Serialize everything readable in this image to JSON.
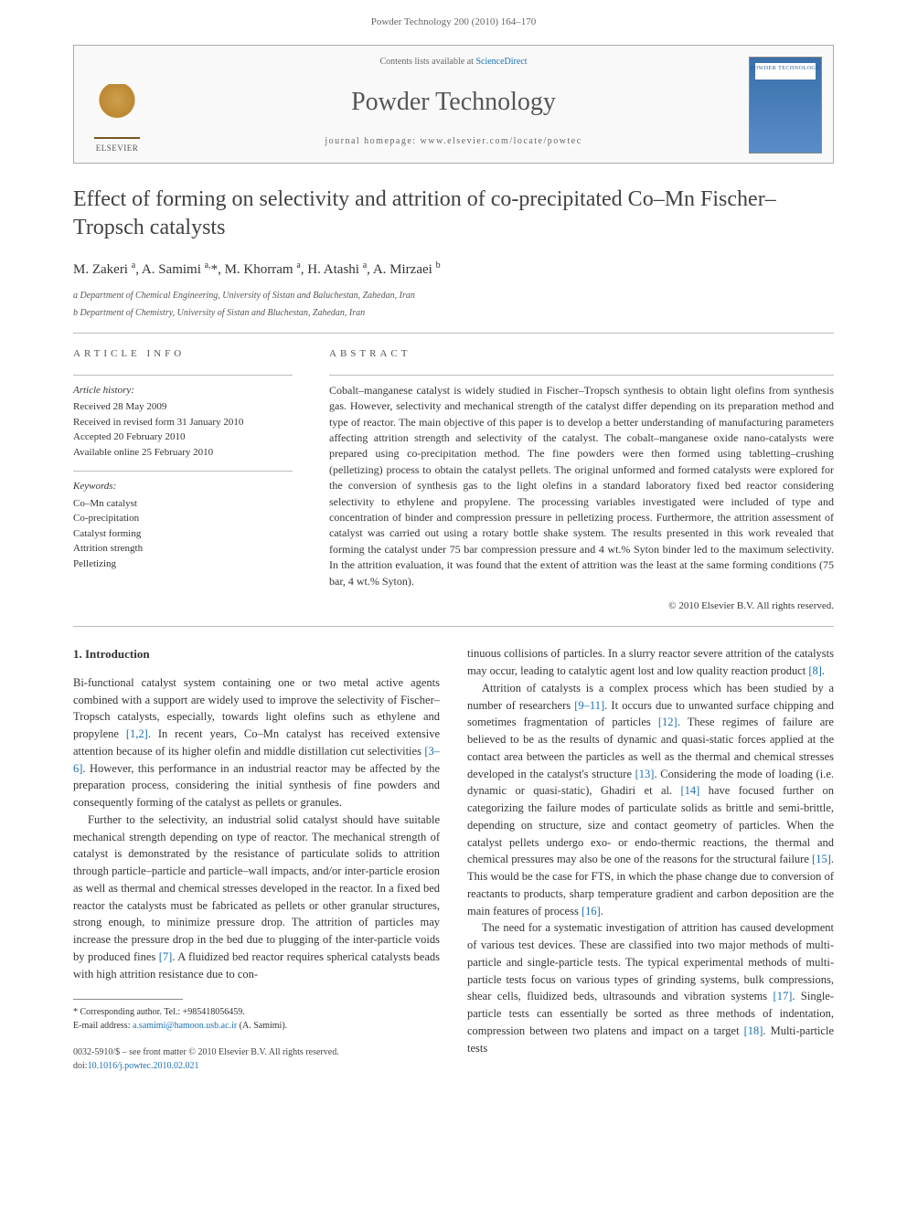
{
  "page_header": "Powder Technology 200 (2010) 164–170",
  "banner": {
    "contents_prefix": "Contents lists available at ",
    "contents_link": "ScienceDirect",
    "journal": "Powder Technology",
    "homepage_prefix": "journal homepage: ",
    "homepage_url": "www.elsevier.com/locate/powtec",
    "publisher_label": "ELSEVIER",
    "cover_label": "POWDER TECHNOLOGY"
  },
  "title": "Effect of forming on selectivity and attrition of co-precipitated Co–Mn Fischer–Tropsch catalysts",
  "authors_html": "M. Zakeri <sup>a</sup>, A. Samimi <sup>a,</sup><span class='star'>*</span>, M. Khorram <sup>a</sup>, H. Atashi <sup>a</sup>, A. Mirzaei <sup>b</sup>",
  "affiliations": [
    "a Department of Chemical Engineering, University of Sistan and Baluchestan, Zahedan, Iran",
    "b Department of Chemistry, University of Sistan and Bluchestan, Zahedan, Iran"
  ],
  "article_info_label": "ARTICLE INFO",
  "abstract_label": "ABSTRACT",
  "history_label": "Article history:",
  "history": [
    "Received 28 May 2009",
    "Received in revised form 31 January 2010",
    "Accepted 20 February 2010",
    "Available online 25 February 2010"
  ],
  "keywords_label": "Keywords:",
  "keywords": [
    "Co–Mn catalyst",
    "Co-precipitation",
    "Catalyst forming",
    "Attrition strength",
    "Pelletizing"
  ],
  "abstract": "Cobalt–manganese catalyst is widely studied in Fischer–Tropsch synthesis to obtain light olefins from synthesis gas. However, selectivity and mechanical strength of the catalyst differ depending on its preparation method and type of reactor. The main objective of this paper is to develop a better understanding of manufacturing parameters affecting attrition strength and selectivity of the catalyst. The cobalt–manganese oxide nano-catalysts were prepared using co-precipitation method. The fine powders were then formed using tabletting–crushing (pelletizing) process to obtain the catalyst pellets. The original unformed and formed catalysts were explored for the conversion of synthesis gas to the light olefins in a standard laboratory fixed bed reactor considering selectivity to ethylene and propylene. The processing variables investigated were included of type and concentration of binder and compression pressure in pelletizing process. Furthermore, the attrition assessment of catalyst was carried out using a rotary bottle shake system. The results presented in this work revealed that forming the catalyst under 75 bar compression pressure and 4 wt.% Syton binder led to the maximum selectivity. In the attrition evaluation, it was found that the extent of attrition was the least at the same forming conditions (75 bar, 4 wt.% Syton).",
  "copyright": "© 2010 Elsevier B.V. All rights reserved.",
  "section_heading": "1. Introduction",
  "col1": {
    "p1": "Bi-functional catalyst system containing one or two metal active agents combined with a support are widely used to improve the selectivity of Fischer–Tropsch catalysts, especially, towards light olefins such as ethylene and propylene [1,2]. In recent years, Co–Mn catalyst has received extensive attention because of its higher olefin and middle distillation cut selectivities [3–6]. However, this performance in an industrial reactor may be affected by the preparation process, considering the initial synthesis of fine powders and consequently forming of the catalyst as pellets or granules.",
    "p2": "Further to the selectivity, an industrial solid catalyst should have suitable mechanical strength depending on type of reactor. The mechanical strength of catalyst is demonstrated by the resistance of particulate solids to attrition through particle–particle and particle–wall impacts, and/or inter-particle erosion as well as thermal and chemical stresses developed in the reactor. In a fixed bed reactor the catalysts must be fabricated as pellets or other granular structures, strong enough, to minimize pressure drop. The attrition of particles may increase the pressure drop in the bed due to plugging of the inter-particle voids by produced fines [7]. A fluidized bed reactor requires spherical catalysts beads with high attrition resistance due to con-"
  },
  "col2": {
    "p1": "tinuous collisions of particles. In a slurry reactor severe attrition of the catalysts may occur, leading to catalytic agent lost and low quality reaction product [8].",
    "p2": "Attrition of catalysts is a complex process which has been studied by a number of researchers [9–11]. It occurs due to unwanted surface chipping and sometimes fragmentation of particles [12]. These regimes of failure are believed to be as the results of dynamic and quasi-static forces applied at the contact area between the particles as well as the thermal and chemical stresses developed in the catalyst's structure [13]. Considering the mode of loading (i.e. dynamic or quasi-static), Ghadiri et al. [14] have focused further on categorizing the failure modes of particulate solids as brittle and semi-brittle, depending on structure, size and contact geometry of particles. When the catalyst pellets undergo exo- or endo-thermic reactions, the thermal and chemical pressures may also be one of the reasons for the structural failure [15]. This would be the case for FTS, in which the phase change due to conversion of reactants to products, sharp temperature gradient and carbon deposition are the main features of process [16].",
    "p3": "The need for a systematic investigation of attrition has caused development of various test devices. These are classified into two major methods of multi-particle and single-particle tests. The typical experimental methods of multi-particle tests focus on various types of grinding systems, bulk compressions, shear cells, fluidized beds, ultrasounds and vibration systems [17]. Single-particle tests can essentially be sorted as three methods of indentation, compression between two platens and impact on a target [18]. Multi-particle tests"
  },
  "footnote": {
    "corr": "* Corresponding author. Tel.: +985418056459.",
    "email_label": "E-mail address: ",
    "email": "a.samimi@hamoon.usb.ac.ir",
    "email_suffix": " (A. Samimi)."
  },
  "footer": {
    "line1": "0032-5910/$ – see front matter © 2010 Elsevier B.V. All rights reserved.",
    "doi_label": "doi:",
    "doi": "10.1016/j.powtec.2010.02.021"
  },
  "refs": {
    "r12": "[1,2]",
    "r36": "[3–6]",
    "r7": "[7]",
    "r8": "[8]",
    "r911": "[9–11]",
    "r12b": "[12]",
    "r13": "[13]",
    "r14": "[14]",
    "r15": "[15]",
    "r16": "[16]",
    "r17": "[17]",
    "r18": "[18]"
  }
}
